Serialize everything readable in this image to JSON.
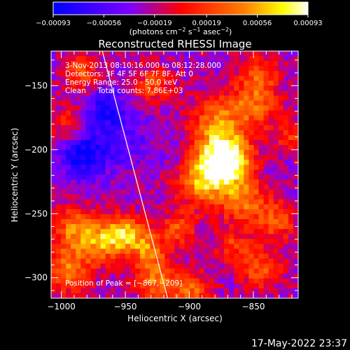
{
  "chart_data": {
    "type": "heatmap",
    "title": "Reconstructed RHESSI Image",
    "xlabel": "Heliocentric X (arcsec)",
    "ylabel": "Heliocentric Y (arcsec)",
    "xlim": [
      -1008,
      -815
    ],
    "ylim": [
      -316,
      -123
    ],
    "x_ticks": [
      -1000,
      -950,
      -900,
      -850
    ],
    "x_tick_labels": [
      "−1000",
      "−950",
      "−900",
      "−850"
    ],
    "y_ticks": [
      -300,
      -250,
      -200,
      -150
    ],
    "y_tick_labels": [
      "−300",
      "−250",
      "−200",
      "−150"
    ],
    "colorbar": {
      "range": [
        -0.00093,
        0.00093
      ],
      "tick_values": [
        -0.00093,
        -0.00056,
        -0.00019,
        0.00019,
        0.00056,
        0.00093
      ],
      "tick_labels": [
        "−0.00093",
        "−0.00056",
        "−0.00019",
        "0.00019",
        "0.00056",
        "0.00093"
      ],
      "units_prefix": "(photons cm",
      "units_exp1": "−2",
      "units_mid1": " s",
      "units_exp2": "−1",
      "units_mid2": " asec",
      "units_exp3": "−2",
      "units_suffix": ")",
      "colors": [
        "#0000ff",
        "#7a00ff",
        "#ff0000",
        "#ff8000",
        "#ffff00",
        "#ffffff"
      ]
    },
    "annotations": [
      "3-Nov-2013 08:10:16.000 to 08:12:28.000",
      "Detectors: 3F 4F 5F 6F 7F 8F, Att 0",
      "Energy Range: 25.0 - 50.0 keV",
      "Clean     Total counts: 7.86E+03"
    ],
    "peak_label": "Position of Peak = [−867,−209]",
    "peak_position": [
      -867,
      -209
    ],
    "limb_line": [
      [
        -968,
        -123
      ],
      [
        -917,
        -316
      ]
    ],
    "sources": [
      {
        "x": -870,
        "y": -207,
        "peak": 1.0,
        "sigma": 13
      },
      {
        "x": -888,
        "y": -222,
        "peak": 0.75,
        "sigma": 15
      },
      {
        "x": -858,
        "y": -240,
        "peak": 0.55,
        "sigma": 12
      },
      {
        "x": -880,
        "y": -180,
        "peak": 0.55,
        "sigma": 14
      },
      {
        "x": -850,
        "y": -165,
        "peak": 0.5,
        "sigma": 14
      },
      {
        "x": -845,
        "y": -140,
        "peak": 0.4,
        "sigma": 10
      },
      {
        "x": -950,
        "y": -265,
        "peak": 0.7,
        "sigma": 10
      },
      {
        "x": -968,
        "y": -272,
        "peak": 0.6,
        "sigma": 11
      },
      {
        "x": -932,
        "y": -278,
        "peak": 0.55,
        "sigma": 10
      },
      {
        "x": -990,
        "y": -262,
        "peak": 0.55,
        "sigma": 12
      },
      {
        "x": -995,
        "y": -295,
        "peak": 0.55,
        "sigma": 13
      },
      {
        "x": -925,
        "y": -303,
        "peak": 0.55,
        "sigma": 11
      },
      {
        "x": -898,
        "y": -310,
        "peak": 0.5,
        "sigma": 10
      },
      {
        "x": -845,
        "y": -292,
        "peak": 0.45,
        "sigma": 12
      },
      {
        "x": -832,
        "y": -255,
        "peak": 0.45,
        "sigma": 11
      },
      {
        "x": -985,
        "y": -140,
        "peak": 0.45,
        "sigma": 10
      },
      {
        "x": -928,
        "y": -150,
        "peak": 0.4,
        "sigma": 11
      },
      {
        "x": -995,
        "y": -180,
        "peak": 0.3,
        "sigma": 10
      },
      {
        "x": -908,
        "y": -262,
        "peak": 0.45,
        "sigma": 9
      },
      {
        "x": -820,
        "y": -190,
        "peak": 0.35,
        "sigma": 9
      },
      {
        "x": -868,
        "y": -275,
        "peak": 0.35,
        "sigma": 9
      },
      {
        "x": -960,
        "y": -190,
        "peak": -0.3,
        "sigma": 18
      },
      {
        "x": -985,
        "y": -205,
        "peak": -0.45,
        "sigma": 12
      },
      {
        "x": -965,
        "y": -165,
        "peak": -0.35,
        "sigma": 10
      },
      {
        "x": -910,
        "y": -205,
        "peak": -0.15,
        "sigma": 10
      }
    ]
  },
  "footer": {
    "timestamp": "17-May-2022 23:37"
  }
}
